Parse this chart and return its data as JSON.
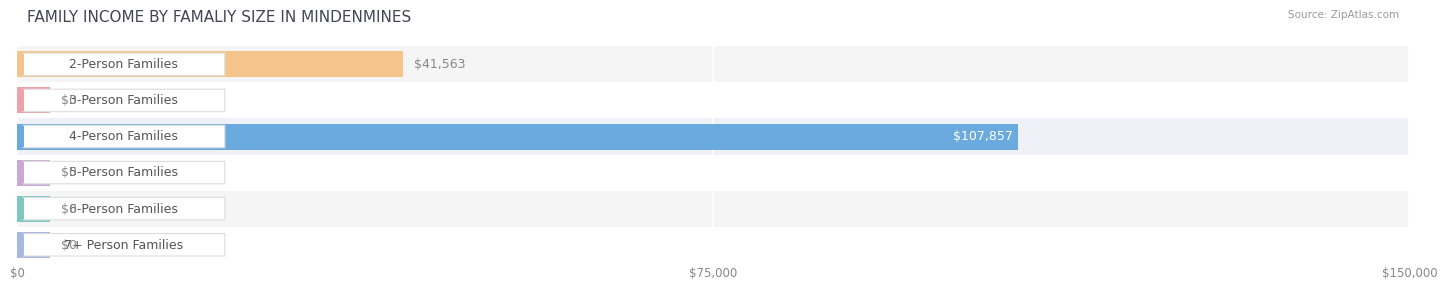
{
  "title": "FAMILY INCOME BY FAMALIY SIZE IN MINDENMINES",
  "source": "Source: ZipAtlas.com",
  "categories": [
    "2-Person Families",
    "3-Person Families",
    "4-Person Families",
    "5-Person Families",
    "6-Person Families",
    "7+ Person Families"
  ],
  "values": [
    41563,
    0,
    107857,
    0,
    0,
    0
  ],
  "bar_colors": [
    "#f5c38c",
    "#f0a0aa",
    "#6aaade",
    "#c9aad4",
    "#7dc8c0",
    "#a8b8e0"
  ],
  "row_bg_colors": [
    "#f5f5f5",
    "#ffffff",
    "#f0f0f8",
    "#ffffff",
    "#f5f5f5",
    "#ffffff"
  ],
  "xlim": [
    0,
    150000
  ],
  "xticks": [
    0,
    75000,
    150000
  ],
  "xtick_labels": [
    "$0",
    "$75,000",
    "$150,000"
  ],
  "value_labels": [
    "$41,563",
    "$0",
    "$107,857",
    "$0",
    "$0",
    "$0"
  ],
  "title_fontsize": 11,
  "label_fontsize": 9,
  "value_fontsize": 9,
  "figsize": [
    14.06,
    3.05
  ]
}
